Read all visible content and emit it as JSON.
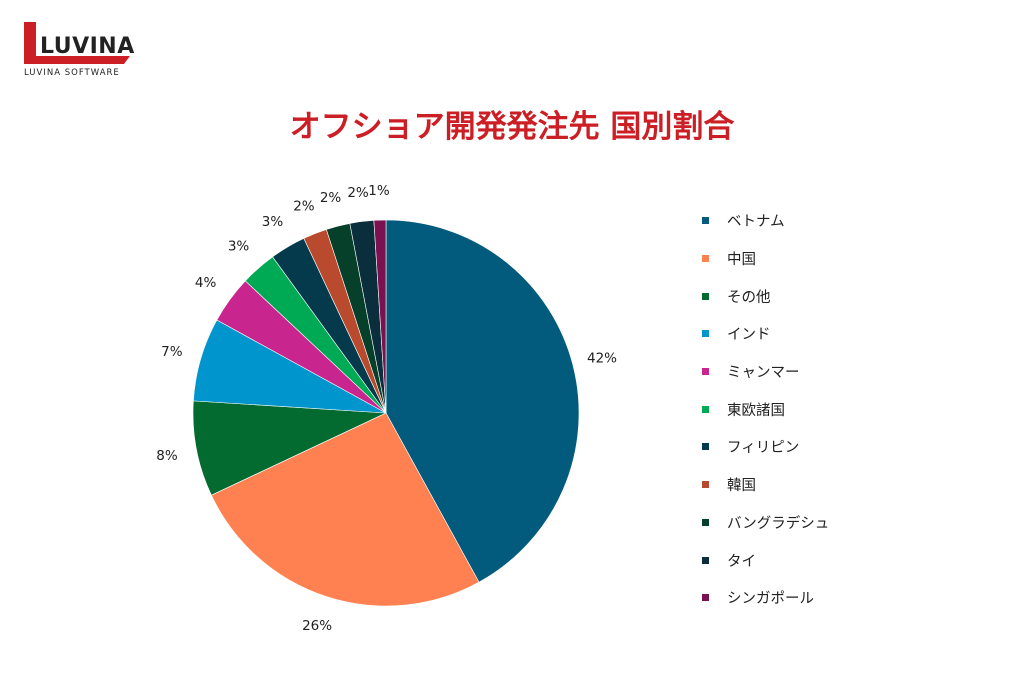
{
  "logo": {
    "text": "LUVINA",
    "subtext": "LUVINA SOFTWARE"
  },
  "title": "オフショア開発発注先 国別割合",
  "colors": {
    "title": "#cc1f25",
    "logo_red": "#cc1f25"
  },
  "chart_data": {
    "type": "pie",
    "title": "オフショア開発発注先 国別割合",
    "legend_position": "right",
    "start_angle": "12 o'clock, clockwise",
    "categories": [
      "ベトナム",
      "中国",
      "その他",
      "インド",
      "ミャンマー",
      "東欧諸国",
      "フィリピン",
      "韓国",
      "バングラデシュ",
      "タイ",
      "シンガポール"
    ],
    "values": [
      42,
      26,
      8,
      7,
      4,
      3,
      3,
      2,
      2,
      2,
      1
    ],
    "labels": [
      "42%",
      "26%",
      "8%",
      "7%",
      "4%",
      "3%",
      "3%",
      "2%",
      "2%",
      "2%",
      "1%"
    ],
    "colors": [
      "#025a7c",
      "#ff8152",
      "#036b2f",
      "#0095cd",
      "#c8258e",
      "#00aa55",
      "#053a4d",
      "#b94a2e",
      "#07402a",
      "#0b2e3d",
      "#7b1150"
    ]
  }
}
